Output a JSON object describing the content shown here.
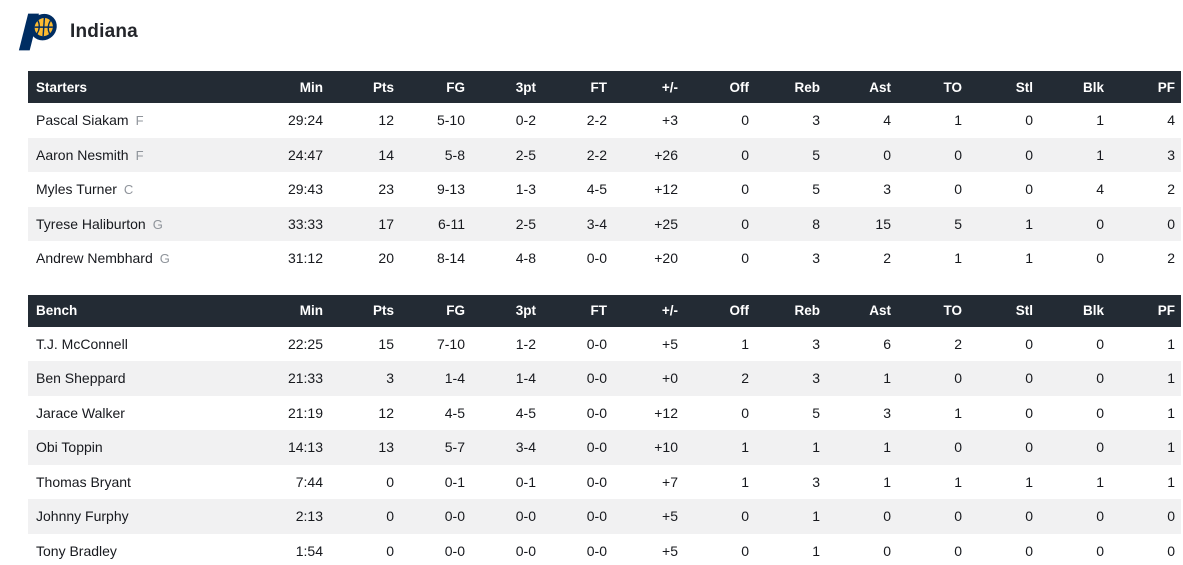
{
  "team": {
    "name": "Indiana"
  },
  "logo": {
    "icon": "indiana-pacers-logo",
    "navy": "#002d62",
    "gold": "#fdbb30"
  },
  "columns": [
    "Min",
    "Pts",
    "FG",
    "3pt",
    "FT",
    "+/-",
    "Off",
    "Reb",
    "Ast",
    "TO",
    "Stl",
    "Blk",
    "PF"
  ],
  "tables": [
    {
      "label": "Starters",
      "rows": [
        {
          "name": "Pascal Siakam",
          "pos": "F",
          "stats": [
            "29:24",
            "12",
            "5-10",
            "0-2",
            "2-2",
            "+3",
            "0",
            "3",
            "4",
            "1",
            "0",
            "1",
            "4"
          ]
        },
        {
          "name": "Aaron Nesmith",
          "pos": "F",
          "stats": [
            "24:47",
            "14",
            "5-8",
            "2-5",
            "2-2",
            "+26",
            "0",
            "5",
            "0",
            "0",
            "0",
            "1",
            "3"
          ]
        },
        {
          "name": "Myles Turner",
          "pos": "C",
          "stats": [
            "29:43",
            "23",
            "9-13",
            "1-3",
            "4-5",
            "+12",
            "0",
            "5",
            "3",
            "0",
            "0",
            "4",
            "2"
          ]
        },
        {
          "name": "Tyrese Haliburton",
          "pos": "G",
          "stats": [
            "33:33",
            "17",
            "6-11",
            "2-5",
            "3-4",
            "+25",
            "0",
            "8",
            "15",
            "5",
            "1",
            "0",
            "0"
          ]
        },
        {
          "name": "Andrew Nembhard",
          "pos": "G",
          "stats": [
            "31:12",
            "20",
            "8-14",
            "4-8",
            "0-0",
            "+20",
            "0",
            "3",
            "2",
            "1",
            "1",
            "0",
            "2"
          ]
        }
      ]
    },
    {
      "label": "Bench",
      "rows": [
        {
          "name": "T.J. McConnell",
          "pos": "",
          "stats": [
            "22:25",
            "15",
            "7-10",
            "1-2",
            "0-0",
            "+5",
            "1",
            "3",
            "6",
            "2",
            "0",
            "0",
            "1"
          ]
        },
        {
          "name": "Ben Sheppard",
          "pos": "",
          "stats": [
            "21:33",
            "3",
            "1-4",
            "1-4",
            "0-0",
            "+0",
            "2",
            "3",
            "1",
            "0",
            "0",
            "0",
            "1"
          ]
        },
        {
          "name": "Jarace Walker",
          "pos": "",
          "stats": [
            "21:19",
            "12",
            "4-5",
            "4-5",
            "0-0",
            "+12",
            "0",
            "5",
            "3",
            "1",
            "0",
            "0",
            "1"
          ]
        },
        {
          "name": "Obi Toppin",
          "pos": "",
          "stats": [
            "14:13",
            "13",
            "5-7",
            "3-4",
            "0-0",
            "+10",
            "1",
            "1",
            "1",
            "0",
            "0",
            "0",
            "1"
          ]
        },
        {
          "name": "Thomas Bryant",
          "pos": "",
          "stats": [
            "7:44",
            "0",
            "0-1",
            "0-1",
            "0-0",
            "+7",
            "1",
            "3",
            "1",
            "1",
            "1",
            "1",
            "1"
          ]
        },
        {
          "name": "Johnny Furphy",
          "pos": "",
          "stats": [
            "2:13",
            "0",
            "0-0",
            "0-0",
            "0-0",
            "+5",
            "0",
            "1",
            "0",
            "0",
            "0",
            "0",
            "0"
          ]
        },
        {
          "name": "Tony Bradley",
          "pos": "",
          "stats": [
            "1:54",
            "0",
            "0-0",
            "0-0",
            "0-0",
            "+5",
            "0",
            "1",
            "0",
            "0",
            "0",
            "0",
            "0"
          ]
        }
      ]
    }
  ],
  "theme": {
    "header-bg": "#232b34",
    "header-text": "#ffffff",
    "row-stripe": "#f1f1f2",
    "text": "#17191e",
    "pos-text": "#8f949b"
  }
}
